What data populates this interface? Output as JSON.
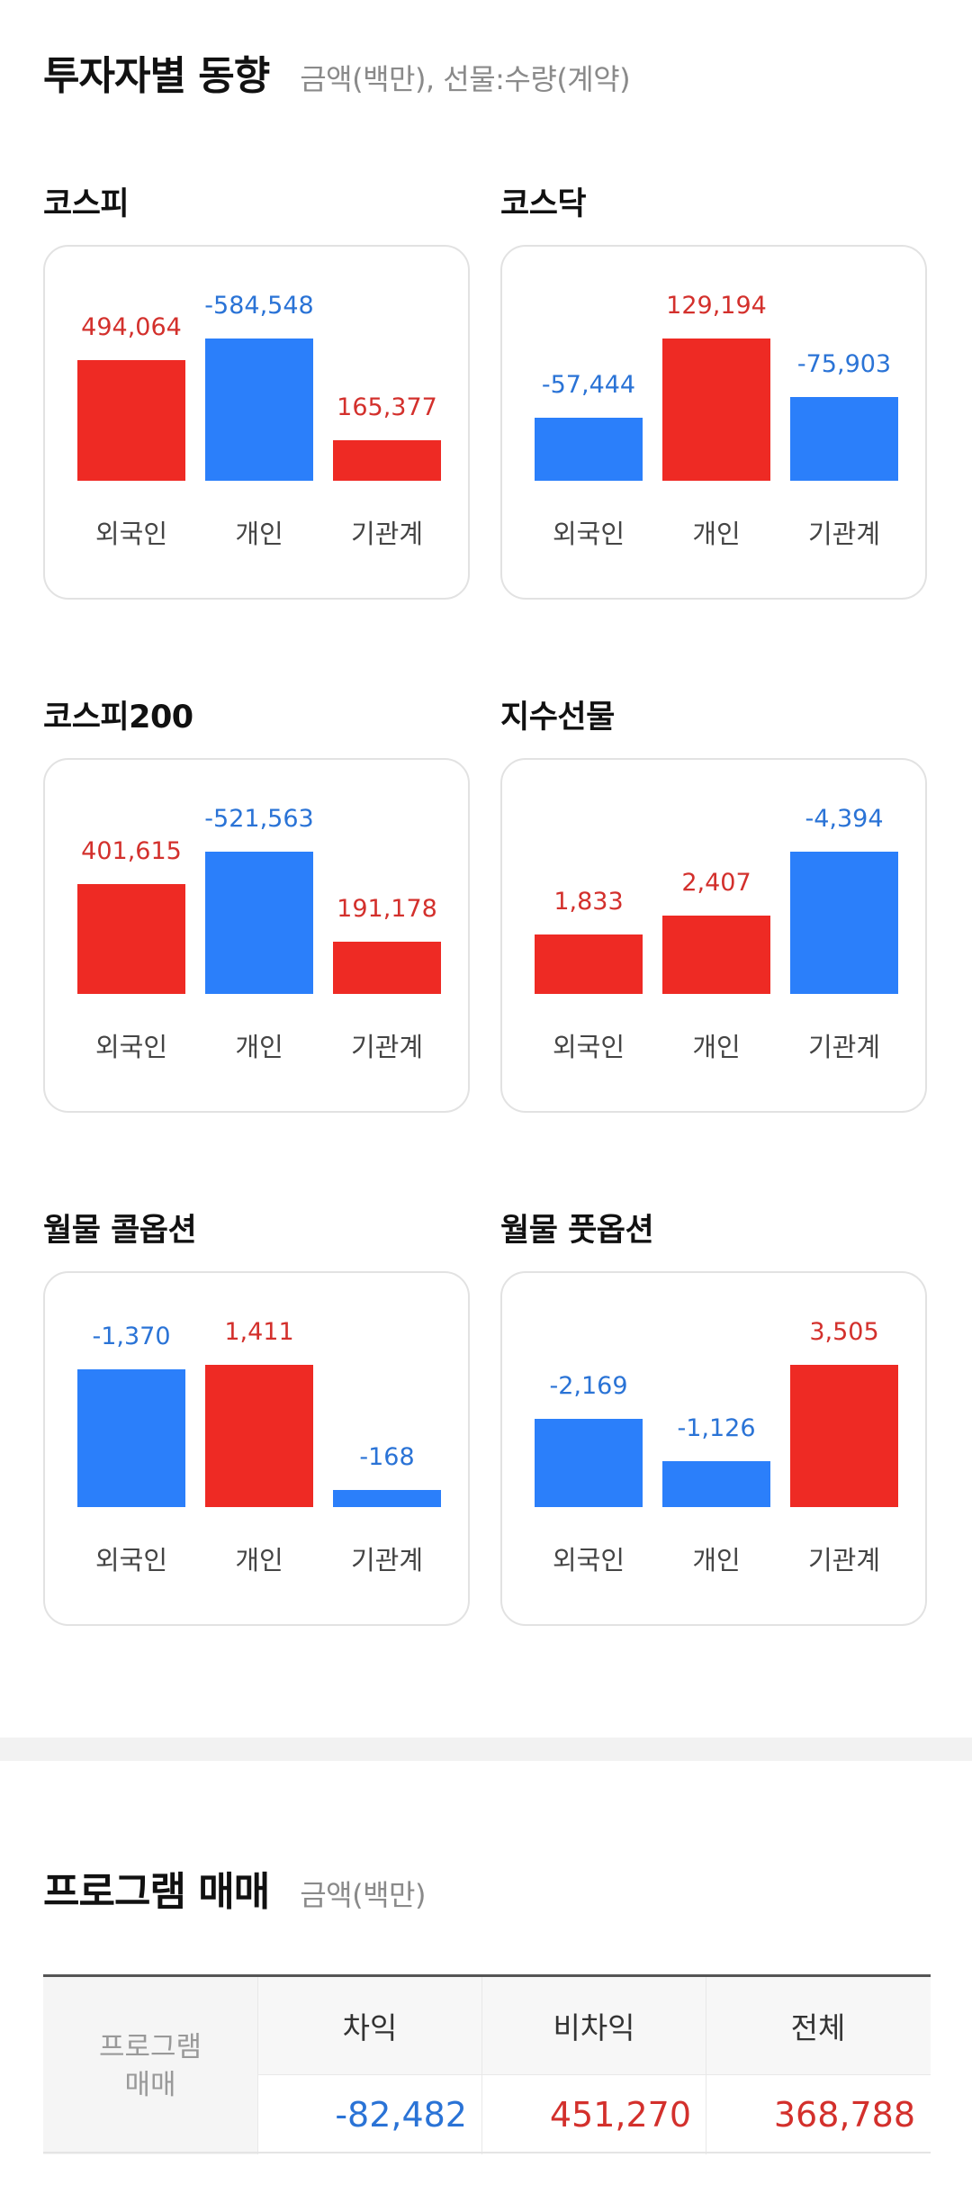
{
  "investor_trends": {
    "title": "투자자별 동향",
    "subtitle": "금액(백만), 선물:수량(계약)",
    "categories": [
      "외국인",
      "개인",
      "기관계"
    ],
    "charts": [
      {
        "name": "코스피",
        "values": [
          "494,064",
          "-584,548",
          "165,377"
        ],
        "nums": [
          494064,
          -584548,
          165377
        ]
      },
      {
        "name": "코스닥",
        "values": [
          "-57,444",
          "129,194",
          "-75,903"
        ],
        "nums": [
          -57444,
          129194,
          -75903
        ]
      },
      {
        "name": "코스피200",
        "values": [
          "401,615",
          "-521,563",
          "191,178"
        ],
        "nums": [
          401615,
          -521563,
          191178
        ]
      },
      {
        "name": "지수선물",
        "values": [
          "1,833",
          "2,407",
          "-4,394"
        ],
        "nums": [
          1833,
          2407,
          -4394
        ]
      },
      {
        "name": "월물 콜옵션",
        "values": [
          "-1,370",
          "1,411",
          "-168"
        ],
        "nums": [
          -1370,
          1411,
          -168
        ]
      },
      {
        "name": "월물 풋옵션",
        "values": [
          "-2,169",
          "-1,126",
          "3,505"
        ],
        "nums": [
          -2169,
          -1126,
          3505
        ]
      }
    ]
  },
  "program_trading": {
    "title": "프로그램 매매",
    "subtitle": "금액(백만)",
    "row_label_line1": "프로그램",
    "row_label_line2": "매매",
    "columns": [
      "차익",
      "비차익",
      "전체"
    ],
    "values": [
      "-82,482",
      "451,270",
      "368,788"
    ],
    "value_signs": [
      "down",
      "up",
      "up"
    ]
  },
  "colors": {
    "up_bar": "#ee2a24",
    "down_bar": "#2b7ffa",
    "up_text": "#d3302c",
    "down_text": "#2a73d6"
  }
}
